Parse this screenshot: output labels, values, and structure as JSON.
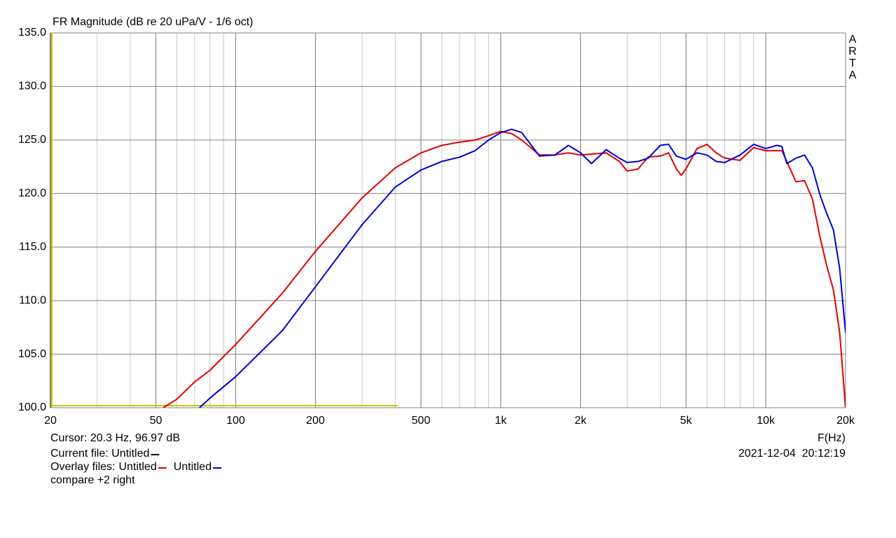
{
  "chart_data": {
    "type": "line",
    "title": "FR Magnitude (dB re 20 uPa/V - 1/6 oct)",
    "watermark": "ARTA",
    "x_label": "F(Hz)",
    "xscale": "log",
    "grid": true,
    "xlim": [
      20,
      20000
    ],
    "ylim": [
      100,
      135
    ],
    "xticks": [
      20,
      50,
      100,
      200,
      500,
      {
        "value": 1000,
        "label": "1k"
      },
      {
        "value": 2000,
        "label": "2k"
      },
      {
        "value": 5000,
        "label": "5k"
      },
      {
        "value": 10000,
        "label": "10k"
      },
      {
        "value": 20000,
        "label": "20k"
      }
    ],
    "yticks": [
      {
        "value": 100,
        "label": "100.0"
      },
      {
        "value": 105,
        "label": "105.0"
      },
      {
        "value": 110,
        "label": "110.0"
      },
      {
        "value": 115,
        "label": "115.0"
      },
      {
        "value": 120,
        "label": "120.0"
      },
      {
        "value": 125,
        "label": "125.0"
      },
      {
        "value": 130,
        "label": "130.0"
      },
      {
        "value": 135,
        "label": "135.0"
      }
    ],
    "series": [
      {
        "name": "Untitled",
        "color": "#e00000",
        "x": [
          53.3,
          60,
          70,
          80,
          100,
          150,
          200,
          300,
          400,
          500,
          600,
          700,
          800,
          900,
          1000,
          1100,
          1200,
          1400,
          1600,
          1800,
          2000,
          2500,
          2800,
          3000,
          3300,
          3600,
          4000,
          4300,
          4600,
          4800,
          5000,
          5500,
          6000,
          6500,
          7000,
          8000,
          9000,
          10000,
          11000,
          11500,
          12000,
          13000,
          14000,
          15000,
          16000,
          17000,
          18000,
          19000,
          20000
        ],
        "values": [
          100,
          100.8,
          102.4,
          103.5,
          105.9,
          110.7,
          114.6,
          119.6,
          122.4,
          123.8,
          124.5,
          124.8,
          125.0,
          125.4,
          125.8,
          125.6,
          125.0,
          123.6,
          123.6,
          123.8,
          123.6,
          123.8,
          123.0,
          122.1,
          122.3,
          123.4,
          123.5,
          123.8,
          122.3,
          121.7,
          122.3,
          124.2,
          124.6,
          123.8,
          123.3,
          123.1,
          124.3,
          124.0,
          124.0,
          124.0,
          123.0,
          121.1,
          121.2,
          119.5,
          116.0,
          113.2,
          111.0,
          107.0,
          100
        ]
      },
      {
        "name": "Untitled",
        "color": "#0000d0",
        "x": [
          73,
          80,
          100,
          150,
          200,
          300,
          400,
          500,
          600,
          700,
          800,
          900,
          1000,
          1100,
          1200,
          1400,
          1600,
          1800,
          2000,
          2200,
          2500,
          2800,
          3000,
          3300,
          3600,
          4000,
          4300,
          4600,
          5000,
          5500,
          6000,
          6500,
          7000,
          8000,
          9000,
          10000,
          11000,
          11500,
          12000,
          13000,
          14000,
          15000,
          16000,
          17000,
          18000,
          19000,
          20000
        ],
        "values": [
          100,
          100.9,
          102.9,
          107.2,
          111.3,
          117.1,
          120.6,
          122.2,
          123.0,
          123.4,
          124.0,
          125.0,
          125.7,
          126.0,
          125.7,
          123.5,
          123.6,
          124.5,
          123.8,
          122.8,
          124.1,
          123.3,
          122.9,
          123.0,
          123.3,
          124.5,
          124.6,
          123.5,
          123.2,
          123.8,
          123.6,
          123.0,
          122.9,
          123.6,
          124.6,
          124.2,
          124.5,
          124.4,
          122.8,
          123.3,
          123.6,
          122.4,
          119.9,
          118.1,
          116.6,
          113.0,
          107.0
        ]
      }
    ],
    "cursor": "Cursor: 20.3 Hz, 96.97 dB",
    "current_file": {
      "label": "Current file: Untitled",
      "color": "#000000"
    },
    "overlay_label": "Overlay files:",
    "note": "compare +2 right",
    "timestamp": "2021-12-04  20:12:19"
  }
}
